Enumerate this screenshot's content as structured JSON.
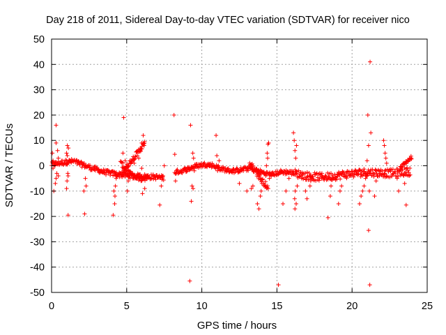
{
  "chart_data": {
    "type": "scatter",
    "title": "Day 218 of 2011, Sidereal Day-to-day VTEC variation (SDTVAR) for receiver nico",
    "xlabel": "GPS time / hours",
    "ylabel": "SDTVAR / TECUs",
    "xlim": [
      0,
      25
    ],
    "ylim": [
      -50,
      50
    ],
    "x_ticks": [
      0,
      5,
      10,
      15,
      20,
      25
    ],
    "y_ticks": [
      50,
      40,
      30,
      20,
      10,
      0,
      -10,
      -20,
      -30,
      -40,
      -50
    ],
    "grid": true,
    "marker": "+",
    "color": "#ff0000",
    "series": [
      {
        "name": "SDTVAR",
        "x": [
          0.05,
          0.3,
          0.45,
          0.15,
          0.3,
          0.5,
          0.1,
          0.25,
          0.35,
          0.4,
          0.2,
          0.1,
          0.3,
          0.45,
          1.0,
          1.05,
          1.1,
          1.0,
          1.08,
          1.12,
          1.03,
          1.1,
          1.0,
          1.05,
          2.2,
          2.25,
          2.3,
          2.15,
          4.1,
          4.2,
          4.15,
          4.3,
          4.22,
          4.25,
          4.2,
          4.8,
          4.75,
          4.9,
          5.05,
          5.1,
          5.3,
          5.5,
          5.7,
          5.9,
          6.0,
          6.1,
          6.2,
          6.15,
          6.05,
          5.95,
          5.8,
          6.0,
          7.2,
          7.3,
          7.4,
          7.5,
          8.15,
          8.2,
          8.3,
          8.25,
          9.2,
          9.25,
          9.3,
          9.35,
          9.4,
          9.45,
          9.5,
          9.42,
          10.95,
          11.0,
          11.05,
          11.1,
          11.15,
          12.5,
          13.0,
          13.3,
          13.4,
          13.7,
          13.8,
          13.9,
          13.95,
          14.0,
          14.2,
          14.35,
          14.4,
          14.45,
          14.38,
          14.42,
          14.5,
          14.3,
          15.1,
          15.4,
          15.6,
          15.8,
          16.1,
          16.15,
          16.2,
          16.25,
          16.3,
          16.22,
          16.18,
          16.28,
          16.2,
          16.35,
          16.3,
          16.9,
          17.0,
          17.2,
          17.25,
          17.3,
          18.4,
          18.55,
          18.6,
          18.7,
          19.1,
          19.2,
          19.3,
          20.5,
          20.6,
          20.7,
          20.8,
          20.9,
          21.0,
          21.05,
          21.1,
          21.15,
          21.2,
          21.25,
          21.18,
          21.1,
          21.0,
          21.5,
          21.6,
          21.7,
          21.8,
          22.1,
          22.15,
          22.2,
          22.25,
          22.3,
          22.18,
          23.0,
          23.1,
          23.5,
          23.6,
          23.8,
          23.9
        ],
        "y": [
          5,
          16,
          -4,
          -10,
          9,
          0.5,
          2,
          -7,
          -3,
          6,
          1,
          -1,
          -5,
          3,
          -9,
          8,
          -19.5,
          5,
          -3,
          7,
          -6,
          -4,
          2,
          4,
          -19,
          -5,
          -8,
          -10,
          -19.5,
          -15,
          -10,
          -5,
          -12,
          -8,
          -3,
          19,
          5,
          2,
          -10,
          -6,
          -3,
          1,
          4,
          7,
          9,
          12,
          -9,
          8,
          -11,
          -6,
          3,
          -1,
          -15.5,
          -8,
          -4,
          0,
          20,
          4.5,
          -3,
          -6,
          -45.5,
          16,
          -14,
          -8,
          5,
          3,
          -2,
          -9,
          12,
          4,
          -2,
          0,
          2,
          -7,
          -10,
          -9,
          -8,
          -15,
          -17,
          -12,
          -10,
          -7,
          -3,
          5,
          8.5,
          9,
          3,
          -9,
          -5,
          0,
          -47,
          -15,
          -10,
          -5,
          13,
          10,
          6,
          3,
          -3,
          -10,
          -13,
          -15,
          -17,
          -8,
          8,
          -10,
          -13,
          -8,
          -6,
          -4,
          -20.5,
          -12,
          -8,
          -5,
          -15,
          -10,
          -8,
          -15,
          -12,
          -10,
          -8,
          -5,
          2,
          20,
          -25.5,
          -10,
          41,
          13,
          -47,
          8,
          -4,
          -12,
          -6,
          -4,
          -2,
          10,
          8,
          5,
          3,
          1,
          -2,
          -5,
          -10,
          -7,
          -15.5,
          -4,
          3
        ]
      }
    ],
    "dense_tracks": [
      {
        "x": [
          0.0,
          0.5,
          1.0,
          1.5,
          2.0,
          2.5,
          3.0,
          3.5,
          4.0,
          4.5,
          5.0,
          5.5,
          6.0,
          6.5,
          7.0,
          7.5
        ],
        "y": [
          0.5,
          1.0,
          1.5,
          1.8,
          0.5,
          -0.5,
          -1.5,
          -2.5,
          -3.0,
          -3.5,
          -3.8,
          -4.0,
          -4.2,
          -4.3,
          -4.5,
          -4.8
        ],
        "scatter": 1.0
      },
      {
        "x": [
          4.7,
          4.9,
          5.1,
          5.3,
          5.5,
          5.7,
          5.9,
          6.1,
          6.2
        ],
        "y": [
          -3.0,
          -1.0,
          0.5,
          2.0,
          3.5,
          5.0,
          6.5,
          8.0,
          9.5
        ],
        "scatter": 1.0
      },
      {
        "x": [
          4.6,
          4.9,
          5.2,
          5.5,
          5.8,
          6.1,
          6.4
        ],
        "y": [
          1.0,
          -1.0,
          -3.0,
          -4.5,
          -5.0,
          -5.0,
          -4.8
        ],
        "scatter": 1.0
      },
      {
        "x": [
          8.2,
          8.7,
          9.2,
          9.7,
          10.2,
          10.7,
          11.2,
          11.7,
          12.2,
          12.7,
          13.2,
          13.7,
          14.2,
          14.7,
          15.2,
          15.7,
          16.2
        ],
        "y": [
          -2.5,
          -2.0,
          -1.0,
          0.0,
          0.5,
          0.2,
          -1.0,
          -1.8,
          -2.0,
          -1.5,
          -1.0,
          -2.0,
          -3.0,
          -3.5,
          -2.5,
          -2.5,
          -3.0
        ],
        "scatter": 0.9
      },
      {
        "x": [
          13.2,
          13.5,
          13.8,
          14.1,
          14.4
        ],
        "y": [
          1.0,
          -1.5,
          -4.0,
          -6.5,
          -8.5
        ],
        "scatter": 1.2
      },
      {
        "x": [
          16.2,
          17.0,
          17.8,
          18.6,
          19.4,
          20.2,
          21.0,
          21.8,
          22.6,
          23.4,
          23.9
        ],
        "y": [
          -3.0,
          -4.0,
          -4.5,
          -4.2,
          -3.5,
          -3.0,
          -2.5,
          -2.8,
          -3.0,
          -2.5,
          -2.0
        ],
        "scatter": 1.6
      },
      {
        "x": [
          23.2,
          23.5,
          23.8,
          24.0
        ],
        "y": [
          -1.0,
          1.0,
          2.5,
          3.5
        ],
        "scatter": 0.7
      }
    ]
  }
}
